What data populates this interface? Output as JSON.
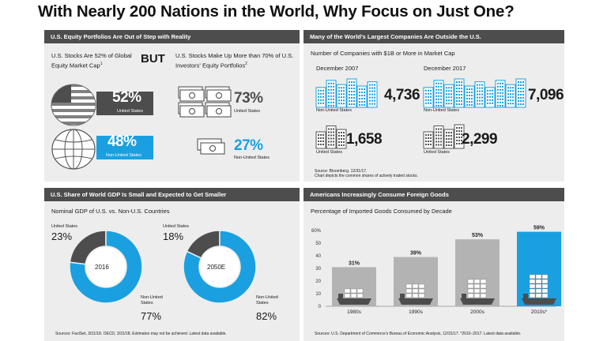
{
  "title": "With Nearly 200 Nations in the World, Why Focus on Just One?",
  "panel1": {
    "header": "U.S. Equity Portfolios Are Out of Step with Reality",
    "left_caption": "U.S. Stocks Are 52% of Global Equity Market Cap",
    "left_caption_sup": "1",
    "but": "BUT",
    "right_caption": "U.S. Stocks Make Up More than 70% of U.S. Investors' Equity Portfolios",
    "right_caption_sup": "2",
    "us_pct": "52%",
    "us_label": "United States",
    "nonus_pct": "48%",
    "nonus_label": "Non-United States",
    "port_us_pct": "73%",
    "port_us_label": "United States",
    "port_nonus_pct": "27%",
    "port_nonus_label": "Non-United States",
    "icons": [
      "us-flag-globe-icon",
      "world-globe-icon",
      "money-stack-icon"
    ]
  },
  "panel2": {
    "header": "Many of the World's Largest Companies Are Outside the U.S.",
    "subtitle": "Number of Companies with $1B or More in Market Cap",
    "col1": "December 2007",
    "col2": "December 2017",
    "nonus_2007": "4,736",
    "nonus_2017": "7,096",
    "us_2007": "1,658",
    "us_2017": "2,299",
    "label_nonus": "Non-United States",
    "label_us": "United States",
    "source": "Source: Bloomberg, 12/31/17.",
    "note": "Chart depicts the common shares of actively traded stocks.",
    "icons": [
      "building-icon"
    ]
  },
  "panel3": {
    "header": "U.S. Share of World GDP Is Small and Expected to Get Smaller",
    "subtitle": "Nominal GDP of U.S. vs. Non-U.S. Countries",
    "source": "Sources: FactSet, 3/31/18. OECD, 3/31/18. Estimates may not be achieved. Latest data available.",
    "donuts": [
      {
        "year": "2016",
        "us_label": "United States",
        "us_pct": "23%",
        "us_value": 23,
        "nonus_label": "Non-United States",
        "nonus_pct": "77%",
        "nonus_value": 77
      },
      {
        "year": "2050E",
        "us_label": "United States",
        "us_pct": "18%",
        "us_value": 18,
        "nonus_label": "Non-United States",
        "nonus_pct": "82%",
        "nonus_value": 82
      }
    ]
  },
  "panel4": {
    "header": "Americans Increasingly Consume Foreign Goods",
    "source": "Sources: U.S. Department of Commerce's Bureau of Economic Analysis, 12/31/17. *2010–2017. Latest data available.",
    "icons": [
      "cargo-ship-icon"
    ]
  },
  "chart_data": {
    "type": "bar",
    "title": "Percentage of Imported Goods Consumed by Decade",
    "categories": [
      "1980s",
      "1990s",
      "2000s",
      "2010s*"
    ],
    "values": [
      31,
      39,
      53,
      59
    ],
    "data_labels": [
      "31%",
      "39%",
      "53%",
      "59%"
    ],
    "ylim": [
      0,
      60
    ],
    "yticks": [
      "0",
      "10",
      "20",
      "30",
      "40",
      "50",
      "60%"
    ],
    "highlight_index": 3,
    "colors": {
      "bar": "#b3b3b3",
      "highlight": "#1aa0e0"
    }
  },
  "colors": {
    "blue": "#1aa0e0",
    "dark": "#4d4d4d",
    "panel": "#ededed",
    "grey": "#b3b3b3",
    "outline": "#1aa0e0"
  }
}
